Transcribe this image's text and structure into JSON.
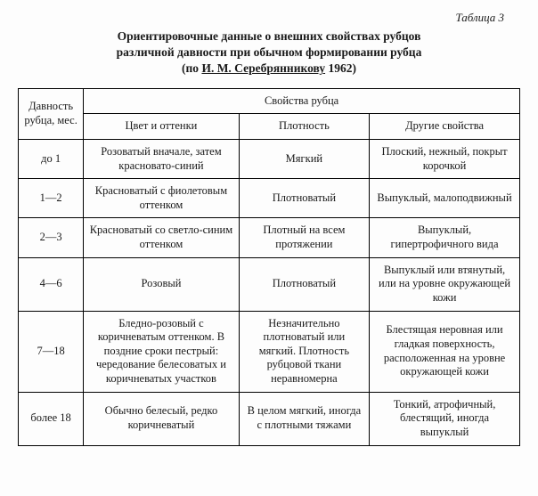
{
  "table_label": "Таблица 3",
  "caption_line1": "Ориентировочные данные о внешних свойствах рубцов",
  "caption_line2": "различной давности при обычном формировании рубца",
  "caption_prefix": "(по ",
  "caption_author": "И. М. Серебрянникову",
  "caption_year": " 1962)",
  "headers": {
    "age": "Давность рубца, мес.",
    "props": "Свойства рубца",
    "color": "Цвет и оттенки",
    "density": "Плотность",
    "other": "Другие свойства"
  },
  "rows": [
    {
      "age": "до 1",
      "color": "Розоватый вначале, затем красновато-синий",
      "density": "Мягкий",
      "other": "Плоский, нежный, покрыт корочкой"
    },
    {
      "age": "1—2",
      "color": "Красноватый с фиолетовым оттенком",
      "density": "Плотноватый",
      "other": "Выпуклый, малоподвижный"
    },
    {
      "age": "2—3",
      "color": "Красноватый со светло-синим оттенком",
      "density": "Плотный на всем протяжении",
      "other": "Выпуклый, гипертрофичного вида"
    },
    {
      "age": "4—6",
      "color": "Розовый",
      "density": "Плотноватый",
      "other": "Выпуклый или втянутый, или на уровне окружающей кожи"
    },
    {
      "age": "7—18",
      "color": "Бледно-розовый с коричневатым оттенком. В поздние сроки пестрый: чередование белесоватых и коричневатых участков",
      "density": "Незначительно плотноватый или мягкий. Плотность рубцовой ткани неравномерна",
      "other": "Блестящая неровная или гладкая поверхность, расположенная на уровне окружающей кожи"
    },
    {
      "age": "более 18",
      "color": "Обычно белесый, редко коричневатый",
      "density": "В целом мягкий, иногда с плотными тяжами",
      "other": "Тонкий, атрофичный, блестящий, иногда выпуклый"
    }
  ]
}
